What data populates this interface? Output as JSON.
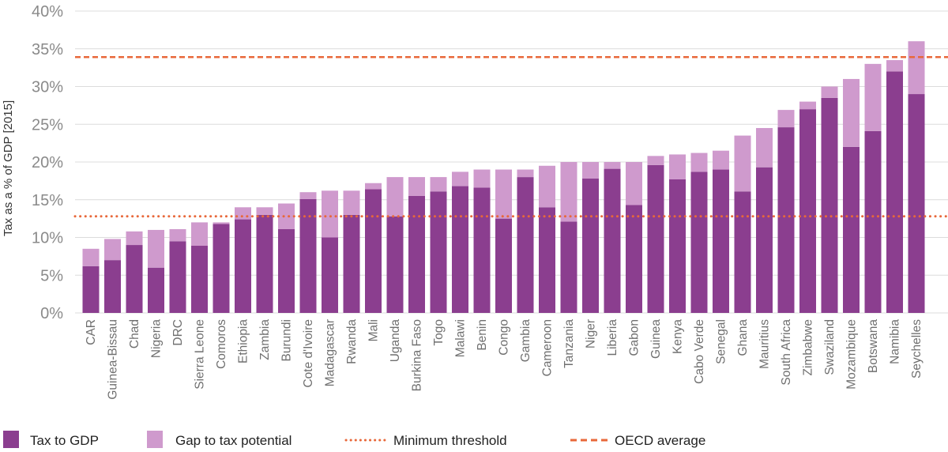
{
  "chart_data": {
    "type": "bar",
    "stacked": true,
    "ylabel": "Tax as a % of GDP [2015]",
    "ylim": [
      0,
      40
    ],
    "yticks": [
      0,
      5,
      10,
      15,
      20,
      25,
      30,
      35,
      40
    ],
    "ytick_suffix": "%",
    "grid": true,
    "legend_position": "bottom",
    "categories": [
      "CAR",
      "Guinea-Bissau",
      "Chad",
      "Nigeria",
      "DRC",
      "Sierra Leone",
      "Comoros",
      "Ethiopia",
      "Zambia",
      "Burundi",
      "Cote d'Ivoire",
      "Madagascar",
      "Rwanda",
      "Mali",
      "Uganda",
      "Burkina Faso",
      "Togo",
      "Malawi",
      "Benin",
      "Congo",
      "Gambia",
      "Cameroon",
      "Tanzania",
      "Niger",
      "Liberia",
      "Gabon",
      "Guinea",
      "Kenya",
      "Cabo Verde",
      "Senegal",
      "Ghana",
      "Mauritius",
      "South Africa",
      "Zimbabwe",
      "Swaziland",
      "Mozambique",
      "Botswana",
      "Namibia",
      "Seychelles"
    ],
    "series": [
      {
        "name": "Tax to GDP",
        "color": "#8b3e8f",
        "values": [
          6.2,
          7.0,
          9.0,
          6.0,
          9.5,
          8.9,
          11.8,
          12.4,
          13.0,
          11.1,
          15.1,
          10.0,
          13.0,
          16.4,
          12.8,
          15.5,
          16.1,
          16.8,
          16.6,
          12.5,
          18.0,
          14.0,
          12.1,
          17.8,
          19.1,
          14.3,
          19.6,
          17.7,
          18.7,
          19.0,
          16.1,
          19.3,
          24.6,
          27.0,
          28.5,
          22.0,
          24.1,
          32.0,
          29.0
        ]
      },
      {
        "name": "Gap to tax potential",
        "color": "#cf9acd",
        "values": [
          2.3,
          2.8,
          1.8,
          5.0,
          1.6,
          3.1,
          0.2,
          1.6,
          1.0,
          3.4,
          0.9,
          6.2,
          3.2,
          0.8,
          5.2,
          2.5,
          1.9,
          1.9,
          2.4,
          6.5,
          1.0,
          5.5,
          7.9,
          2.2,
          0.9,
          5.7,
          1.2,
          3.3,
          2.5,
          2.5,
          7.4,
          5.2,
          2.3,
          1.0,
          1.5,
          9.0,
          8.9,
          1.5,
          7.0
        ]
      }
    ],
    "lines": [
      {
        "name": "Minimum threshold",
        "value": 12.8,
        "color": "#e8683a",
        "style": "dotted"
      },
      {
        "name": "OECD average",
        "value": 33.9,
        "color": "#e8683a",
        "style": "dashed"
      }
    ]
  },
  "legend": {
    "tax_to_gdp": "Tax to GDP",
    "gap": "Gap to tax potential",
    "minimum": "Minimum threshold",
    "oecd": "OECD average"
  }
}
